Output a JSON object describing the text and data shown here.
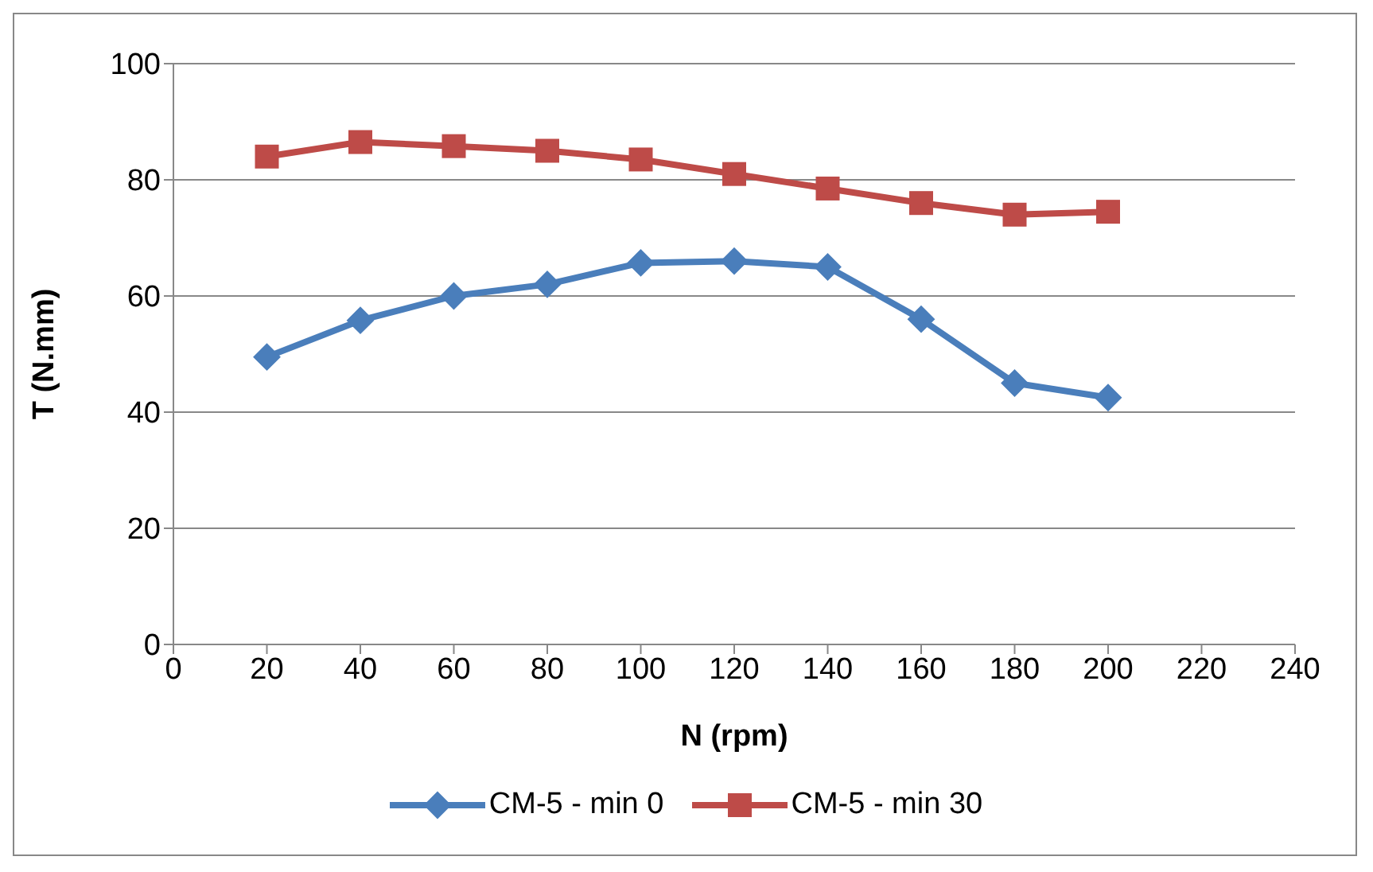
{
  "chart_data": {
    "type": "line",
    "xlabel": "N (rpm)",
    "ylabel": "T (N.mm)",
    "x": [
      20,
      40,
      60,
      80,
      100,
      120,
      140,
      160,
      180,
      200
    ],
    "series": [
      {
        "name": "CM-5 - min 0",
        "color": "#4a7ebb",
        "marker": "diamond",
        "values": [
          49.5,
          55.8,
          60,
          62,
          65.7,
          66,
          65,
          56,
          45,
          42.5
        ]
      },
      {
        "name": "CM-5 - min 30",
        "color": "#be4b48",
        "marker": "square",
        "values": [
          84,
          86.5,
          85.8,
          85,
          83.5,
          81,
          78.5,
          76,
          74,
          74.5
        ]
      }
    ],
    "xlim": [
      0,
      240
    ],
    "xticks": [
      0,
      20,
      40,
      60,
      80,
      100,
      120,
      140,
      160,
      180,
      200,
      220,
      240
    ],
    "ylim": [
      0,
      100
    ],
    "yticks": [
      0,
      20,
      40,
      60,
      80,
      100
    ],
    "grid": "y",
    "legend": "bottom"
  }
}
